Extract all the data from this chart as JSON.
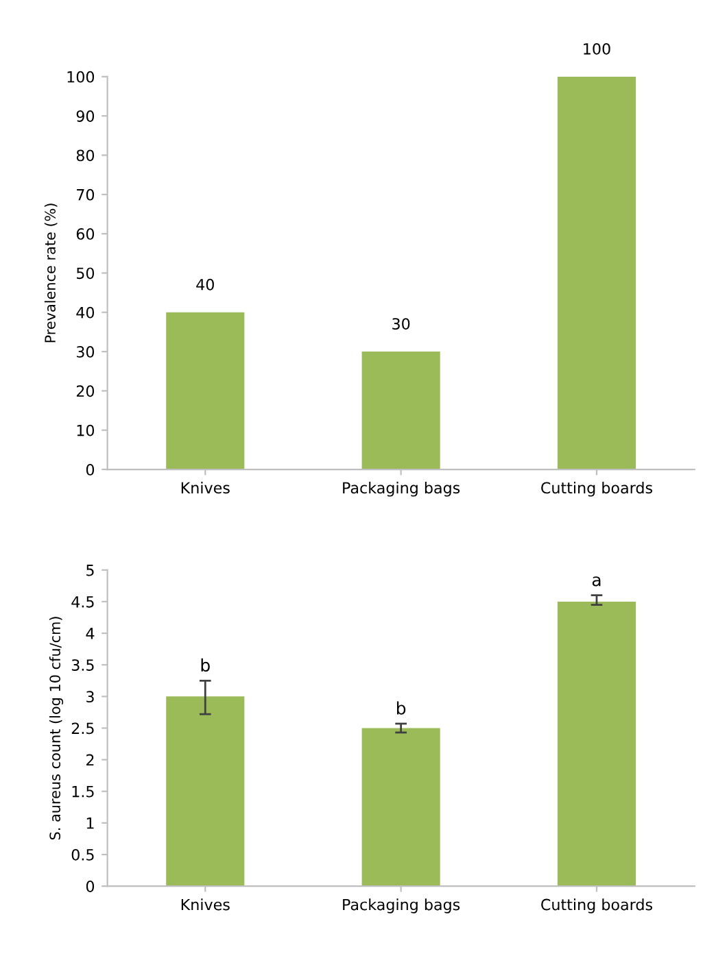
{
  "chart_data": [
    {
      "type": "bar",
      "ylabel": "Prevalence rate (%)",
      "categories": [
        "Knives",
        "Packaging bags",
        "Cutting boards"
      ],
      "values": [
        40,
        30,
        100
      ],
      "color": "#9bbb59",
      "ylim": [
        0,
        100
      ],
      "yticks": [
        0,
        10,
        20,
        30,
        40,
        50,
        60,
        70,
        80,
        90,
        100
      ],
      "data_labels": true,
      "grid": false
    },
    {
      "type": "bar",
      "ylabel": "S. aureus count (log 10 cfu/cm)",
      "categories": [
        "Knives",
        "Packaging bags",
        "Cutting boards"
      ],
      "values": [
        3.0,
        2.5,
        4.5
      ],
      "errors": [
        [
          2.72,
          3.25
        ],
        [
          2.43,
          2.57
        ],
        [
          4.45,
          4.6
        ]
      ],
      "color": "#9bbb59",
      "ylim": [
        0,
        5
      ],
      "yticks": [
        0,
        0.5,
        1,
        1.5,
        2,
        2.5,
        3,
        3.5,
        4,
        4.5,
        5
      ],
      "grid": false,
      "annotations": [
        {
          "text": "b",
          "x": "Knives",
          "y": 3.25
        },
        {
          "text": "b",
          "x": "Packaging bags",
          "y": 2.57
        },
        {
          "text": "a",
          "x": "Cutting boards",
          "y": 4.6
        }
      ]
    }
  ]
}
